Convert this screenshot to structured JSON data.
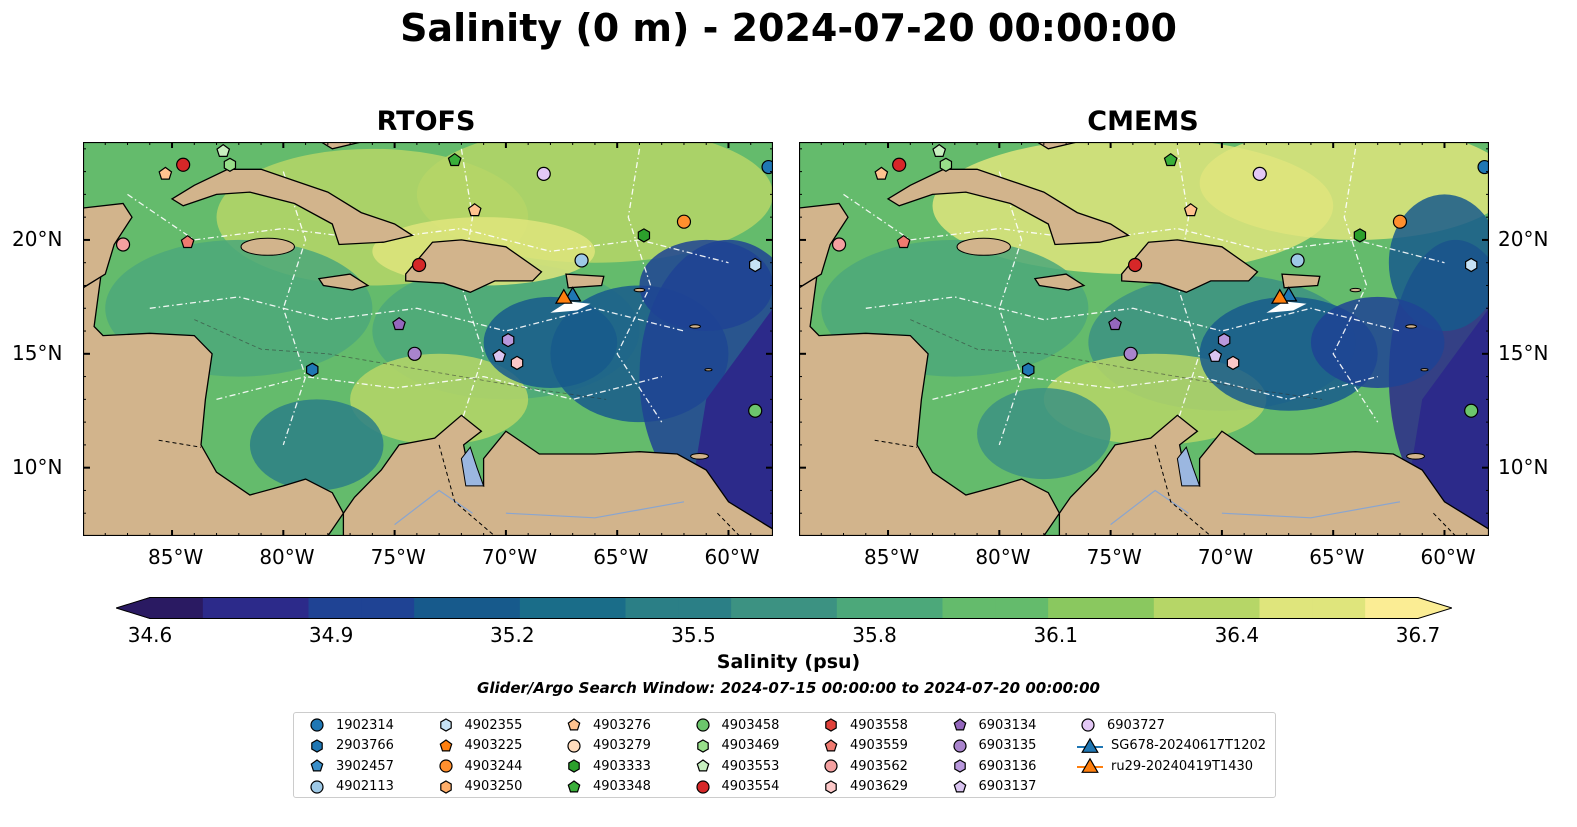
{
  "suptitle": "Salinity (0 m) - 2024-07-20 00:00:00",
  "panels": [
    {
      "title": "RTOFS"
    },
    {
      "title": "CMEMS"
    }
  ],
  "axes": {
    "x_ticks": [
      "85°W",
      "80°W",
      "75°W",
      "70°W",
      "65°W",
      "60°W"
    ],
    "y_ticks": [
      "20°N",
      "15°N",
      "10°N"
    ],
    "x_tick_values": [
      -85,
      -80,
      -75,
      -70,
      -65,
      -60
    ],
    "y_tick_values": [
      20,
      15,
      10
    ],
    "lon_range": [
      -89,
      -58
    ],
    "lat_range": [
      7,
      24.3
    ]
  },
  "colorbar": {
    "label": "Salinity (psu)",
    "ticks": [
      "34.6",
      "34.9",
      "35.2",
      "35.5",
      "35.8",
      "36.1",
      "36.4",
      "36.7"
    ],
    "range": [
      34.6,
      36.7
    ],
    "extend": "both",
    "colormap": "haline",
    "colors": [
      "#2a1a62",
      "#2c2a8a",
      "#1f4394",
      "#175a8c",
      "#1a6d89",
      "#2b7f86",
      "#3c9282",
      "#4ca87a",
      "#64bb6c",
      "#8ac85f",
      "#b6d667",
      "#dfe57c",
      "#fbed94"
    ]
  },
  "search_window": "Glider/Argo Search Window: 2024-07-15 00:00:00 to 2024-07-20 00:00:00",
  "land_color": "#d2b48c",
  "legend": [
    {
      "label": "1902314",
      "marker": "circle",
      "color": "#1f77b4"
    },
    {
      "label": "2903766",
      "marker": "hexagon",
      "color": "#1f77b4"
    },
    {
      "label": "3902457",
      "marker": "pentagon",
      "color": "#3a8fc9"
    },
    {
      "label": "4902113",
      "marker": "circle",
      "color": "#9ec9e6"
    },
    {
      "label": "4902355",
      "marker": "hexagon",
      "color": "#c6e2f5"
    },
    {
      "label": "4903225",
      "marker": "pentagon",
      "color": "#ff7f0e"
    },
    {
      "label": "4903244",
      "marker": "circle",
      "color": "#ff8f2e"
    },
    {
      "label": "4903250",
      "marker": "hexagon",
      "color": "#ffae6a"
    },
    {
      "label": "4903276",
      "marker": "pentagon",
      "color": "#ffc38f"
    },
    {
      "label": "4903279",
      "marker": "circle",
      "color": "#ffdcbd"
    },
    {
      "label": "4903333",
      "marker": "hexagon",
      "color": "#2ca02c"
    },
    {
      "label": "4903348",
      "marker": "pentagon",
      "color": "#3aaf3a"
    },
    {
      "label": "4903458",
      "marker": "circle",
      "color": "#6cc66c"
    },
    {
      "label": "4903469",
      "marker": "hexagon",
      "color": "#98df8a"
    },
    {
      "label": "4903553",
      "marker": "pentagon",
      "color": "#c8f0c0"
    },
    {
      "label": "4903554",
      "marker": "circle",
      "color": "#d62728"
    },
    {
      "label": "4903558",
      "marker": "hexagon",
      "color": "#e0413a"
    },
    {
      "label": "4903559",
      "marker": "pentagon",
      "color": "#f07a70"
    },
    {
      "label": "4903562",
      "marker": "circle",
      "color": "#f4a0a0"
    },
    {
      "label": "4903629",
      "marker": "hexagon",
      "color": "#fcc8c8"
    },
    {
      "label": "6903134",
      "marker": "pentagon",
      "color": "#9467bd"
    },
    {
      "label": "6903135",
      "marker": "circle",
      "color": "#a984cc"
    },
    {
      "label": "6903136",
      "marker": "hexagon",
      "color": "#b898dc"
    },
    {
      "label": "6903137",
      "marker": "pentagon",
      "color": "#d9c4f0"
    },
    {
      "label": "6903727",
      "marker": "circle",
      "color": "#e3c8f5"
    },
    {
      "label": "SG678-20240617T1202",
      "marker": "triangle-line",
      "color": "#1f77b4"
    },
    {
      "label": "ru29-20240419T1430",
      "marker": "triangle-line",
      "color": "#ff7f0e"
    }
  ],
  "floats": [
    {
      "id": "1902314",
      "lon": -58.2,
      "lat": 23.2
    },
    {
      "id": "4903562",
      "lon": -87.2,
      "lat": 19.8
    },
    {
      "id": "4903276",
      "lon": -85.3,
      "lat": 22.9
    },
    {
      "id": "4903554",
      "lon": -84.5,
      "lat": 23.3
    },
    {
      "id": "4903553",
      "lon": -82.7,
      "lat": 23.9
    },
    {
      "id": "4903469",
      "lon": -82.4,
      "lat": 23.3
    },
    {
      "id": "4903559",
      "lon": -84.3,
      "lat": 19.9
    },
    {
      "id": "4903348",
      "lon": -72.3,
      "lat": 23.5
    },
    {
      "id": "6903727",
      "lon": -68.3,
      "lat": 22.9
    },
    {
      "id": "4903276",
      "lon": -71.4,
      "lat": 21.3
    },
    {
      "id": "4903244",
      "lon": -62.0,
      "lat": 20.8
    },
    {
      "id": "4903333",
      "lon": -63.8,
      "lat": 20.2
    },
    {
      "id": "4902355",
      "lon": -58.8,
      "lat": 18.9
    },
    {
      "id": "4902113",
      "lon": -66.6,
      "lat": 19.1
    },
    {
      "id": "4903554",
      "lon": -73.9,
      "lat": 18.9
    },
    {
      "id": "6903134",
      "lon": -74.8,
      "lat": 16.3
    },
    {
      "id": "6903135",
      "lon": -74.1,
      "lat": 15.0
    },
    {
      "id": "6903136",
      "lon": -69.9,
      "lat": 15.6
    },
    {
      "id": "6903137",
      "lon": -70.3,
      "lat": 14.9
    },
    {
      "id": "4903629",
      "lon": -69.5,
      "lat": 14.6
    },
    {
      "id": "2903766",
      "lon": -78.7,
      "lat": 14.3
    },
    {
      "id": "4903458",
      "lon": -58.8,
      "lat": 12.5
    }
  ],
  "gliders": [
    {
      "id": "SG678-20240617T1202",
      "lon": -67.0,
      "lat": 17.6
    },
    {
      "id": "ru29-20240419T1430",
      "lon": -67.4,
      "lat": 17.5
    }
  ]
}
